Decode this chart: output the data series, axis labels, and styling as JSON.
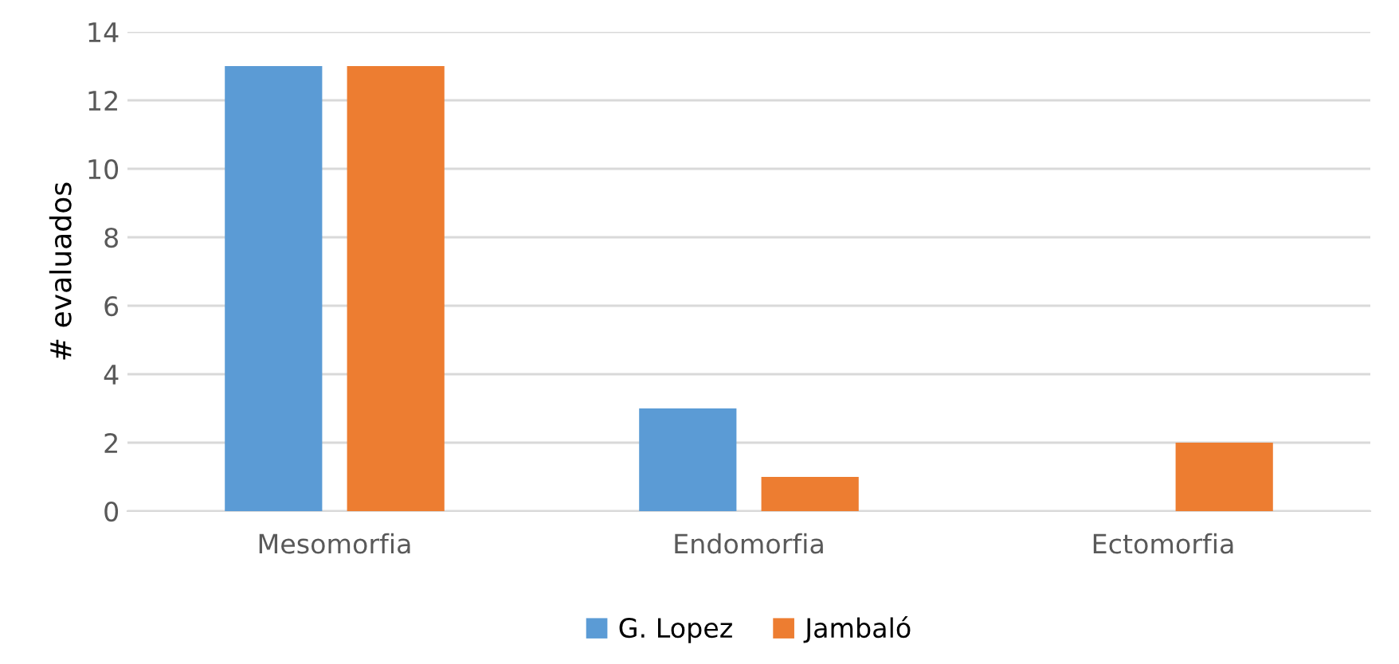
{
  "chart_data": {
    "type": "bar",
    "ylabel": "# evaluados",
    "categories": [
      "Mesomorfia",
      "Endomorfia",
      "Ectomorfia"
    ],
    "series": [
      {
        "name": "G. Lopez",
        "color": "#5b9bd5",
        "values": [
          13,
          3,
          0
        ]
      },
      {
        "name": "Jambaló",
        "color": "#ed7d31",
        "values": [
          13,
          1,
          2
        ]
      }
    ],
    "ylim": [
      0,
      14
    ],
    "yticks": [
      0,
      2,
      4,
      6,
      8,
      10,
      12,
      14
    ],
    "grid": "y",
    "legend": "bottom"
  }
}
